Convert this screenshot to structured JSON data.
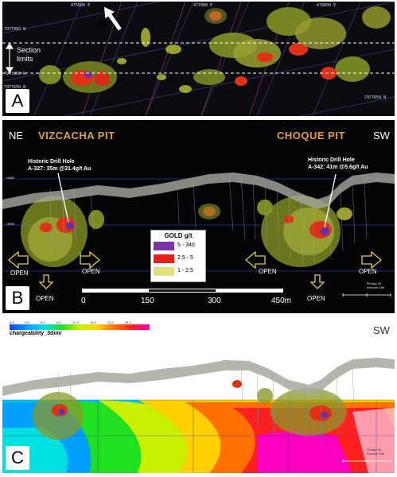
{
  "panel_a": {
    "letter": "A",
    "north_label": "N",
    "section_label_line1": "Section",
    "section_label_line2": "limits",
    "top_ticks": [
      "475600 E",
      "477800 E",
      "478000 E"
    ],
    "left_ticks": [
      "7977950 N",
      "7977800 N",
      "7977650 N"
    ],
    "right_tick": "7977650 N"
  },
  "panel_b": {
    "letter": "B",
    "ne_label": "NE",
    "sw_label": "SW",
    "pit_left": "VIZCACHA PIT",
    "pit_right": "CHOQUE PIT",
    "hole_left_line1": "Historic Drill Hole",
    "hole_left_line2": "A-327: 35m @31.4g/t Au",
    "hole_right_line1": "Historic Drill Hole",
    "hole_right_line2": "A-342: 41m @5.6g/t Au",
    "legend_title": "GOLD g/t",
    "legend_items": [
      {
        "label": "5 - 340",
        "color": "#7b35a8"
      },
      {
        "label": "2.5 - 5",
        "color": "#e8201c"
      },
      {
        "label": "1 - 2.5",
        "color": "#e2e07a"
      }
    ],
    "open_label": "OPEN",
    "scale_labels": [
      "0",
      "150",
      "300",
      "450m"
    ],
    "elev_labels": [
      "+4650",
      "+4600"
    ],
    "plunge_text": "Plunge 00",
    "azimuth_text": "Azimuth 156"
  },
  "panel_c": {
    "letter": "C",
    "sw_label": "SW",
    "legend_values": [
      "3.8",
      "4.8",
      "6.5",
      "8.5",
      "12.3",
      "16.9",
      "21.5",
      "26.2"
    ],
    "legend_title": "chargeability_3dinv",
    "legend_colors": [
      "#1a3cff",
      "#00a0ff",
      "#00e0e0",
      "#20e020",
      "#c8f000",
      "#ffd000",
      "#ff7000",
      "#ff2020",
      "#ff00c0"
    ],
    "plunge_text": "Plunge 00",
    "azimuth_text": "Azimuth 156"
  }
}
